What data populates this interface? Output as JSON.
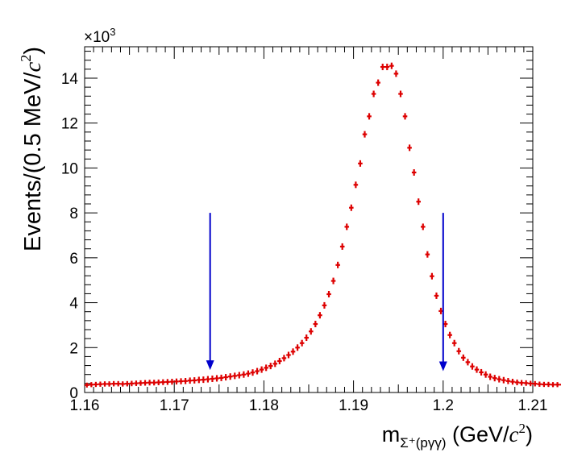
{
  "chart_data": {
    "type": "scatter",
    "title": "",
    "xlabel": {
      "main": "m",
      "sub": "Σ⁺(pγγ)",
      "unit_open": " (GeV/",
      "unit_c": "c",
      "unit_exp": "2",
      "unit_close": ")"
    },
    "ylabel": {
      "main": "Events/(0.5 MeV/",
      "unit_c": "c",
      "unit_exp": "2",
      "unit_close": ")"
    },
    "y_multiplier": {
      "base": "×10",
      "exp": "3"
    },
    "xlim": [
      1.16,
      1.21
    ],
    "ylim": [
      0,
      15.4
    ],
    "x_ticks": [
      {
        "v": 1.16,
        "label": "1.16"
      },
      {
        "v": 1.17,
        "label": "1.17"
      },
      {
        "v": 1.18,
        "label": "1.18"
      },
      {
        "v": 1.19,
        "label": "1.19"
      },
      {
        "v": 1.2,
        "label": "1.2"
      },
      {
        "v": 1.21,
        "label": "1.21"
      }
    ],
    "y_ticks": [
      {
        "v": 0,
        "label": "0"
      },
      {
        "v": 2,
        "label": "2"
      },
      {
        "v": 4,
        "label": "4"
      },
      {
        "v": 6,
        "label": "6"
      },
      {
        "v": 8,
        "label": "8"
      },
      {
        "v": 10,
        "label": "10"
      },
      {
        "v": 12,
        "label": "12"
      },
      {
        "v": 14,
        "label": "14"
      }
    ],
    "series": [
      {
        "color": "#dd0000",
        "x_start": 1.16,
        "bin_width": 0.0005,
        "values": [
          0.33,
          0.35,
          0.36,
          0.37,
          0.38,
          0.38,
          0.39,
          0.39,
          0.38,
          0.39,
          0.4,
          0.41,
          0.42,
          0.43,
          0.44,
          0.44,
          0.45,
          0.46,
          0.47,
          0.48,
          0.49,
          0.5,
          0.51,
          0.53,
          0.54,
          0.56,
          0.57,
          0.59,
          0.61,
          0.63,
          0.65,
          0.68,
          0.71,
          0.74,
          0.77,
          0.8,
          0.84,
          0.89,
          0.95,
          1.02,
          1.1,
          1.18,
          1.28,
          1.4,
          1.53,
          1.67,
          1.82,
          2.0,
          2.2,
          2.44,
          2.72,
          3.05,
          3.44,
          3.88,
          4.38,
          4.97,
          5.68,
          6.5,
          7.38,
          8.23,
          9.25,
          10.2,
          11.5,
          12.3,
          13.3,
          13.8,
          14.5,
          14.5,
          14.55,
          14.2,
          13.3,
          12.3,
          10.9,
          9.8,
          8.5,
          7.38,
          6.15,
          5.18,
          4.31,
          3.63,
          3.05,
          2.56,
          2.2,
          1.84,
          1.55,
          1.35,
          1.16,
          1.02,
          0.9,
          0.8,
          0.7,
          0.64,
          0.59,
          0.55,
          0.51,
          0.48,
          0.45,
          0.43,
          0.42,
          0.4,
          0.39,
          0.37,
          0.36,
          0.36,
          0.35,
          0.35,
          0.35,
          0.34,
          0.33,
          0.31,
          0.3,
          0.29,
          0.28,
          0.28,
          0.28,
          0.28,
          0.28,
          0.28,
          0.28,
          0.29
        ]
      }
    ],
    "arrows": [
      {
        "x": 1.174,
        "y_top": 8.0,
        "y_tip": 1.0,
        "color": "#0000cc"
      },
      {
        "x": 1.2,
        "y_top": 8.0,
        "y_tip": 0.95,
        "color": "#0000cc"
      }
    ],
    "grid": false,
    "legend": "none"
  }
}
